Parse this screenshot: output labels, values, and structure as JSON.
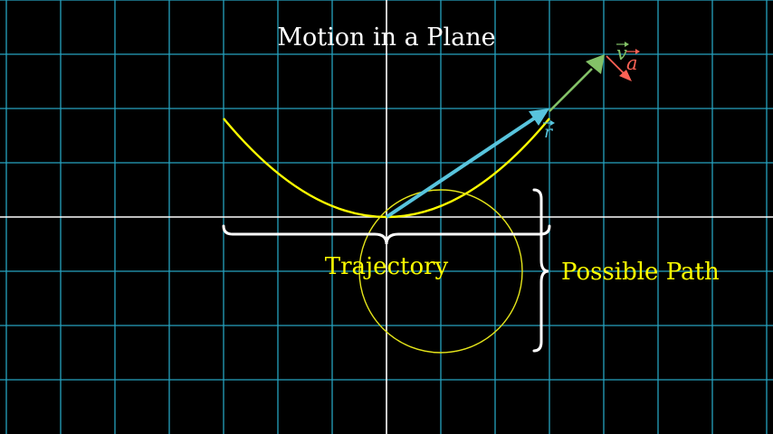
{
  "title": "Motion in a Plane",
  "labels": {
    "trajectory": "Trajectory",
    "possible_path": "Possible Path",
    "position_vector": "r",
    "velocity_vector": "v",
    "acceleration_vector": "a"
  },
  "colors": {
    "background": "#000000",
    "grid": "#29abca",
    "axis": "#ffffff",
    "trajectory": "#ffff00",
    "circle": "#e5e51a",
    "position_vector": "#58c4dd",
    "velocity_vector": "#83c167",
    "acceleration_vector": "#fc6255",
    "braces": "#ffffff",
    "title": "#ffffff",
    "text_label": "#ffff00"
  }
}
